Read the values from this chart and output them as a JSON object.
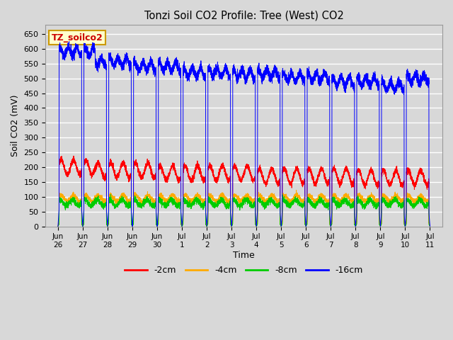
{
  "title": "Tonzi Soil CO2 Profile: Tree (West) CO2",
  "ylabel": "Soil CO2 (mV)",
  "xlabel": "Time",
  "ylim": [
    0,
    680
  ],
  "yticks": [
    0,
    50,
    100,
    150,
    200,
    250,
    300,
    350,
    400,
    450,
    500,
    550,
    600,
    650
  ],
  "legend_label": "TZ_soilco2",
  "series_labels": [
    "-2cm",
    "-4cm",
    "-8cm",
    "-16cm"
  ],
  "series_colors": [
    "#ff0000",
    "#ffaa00",
    "#00cc00",
    "#0000ff"
  ],
  "background_color": "#d8d8d8",
  "axes_bg_color": "#d8d8d8",
  "grid_color": "#ffffff",
  "annotation_bg": "#ffffcc",
  "annotation_border": "#cc9900",
  "annotation_text_color": "#cc0000",
  "seed": 42,
  "tick_labels": [
    "Jun\n26",
    "Jun\n27",
    "Jun\n28",
    "Jun\n29",
    "Jun\n30",
    "Jul\n1",
    "Jul\n2",
    "Jul\n3",
    "Jul\n4",
    "Jul\n5",
    "Jul\n6",
    "Jul\n7",
    "Jul\n8",
    "Jul\n9",
    "Jul\n10",
    "Jul\n11"
  ],
  "spike_positions": [
    0.0,
    1.0,
    2.0,
    3.0,
    4.0,
    5.0,
    6.0,
    7.0,
    8.0,
    9.0,
    10.0,
    11.0,
    12.0,
    13.0,
    14.0,
    15.0
  ],
  "xlim": [
    -0.5,
    15.5
  ]
}
